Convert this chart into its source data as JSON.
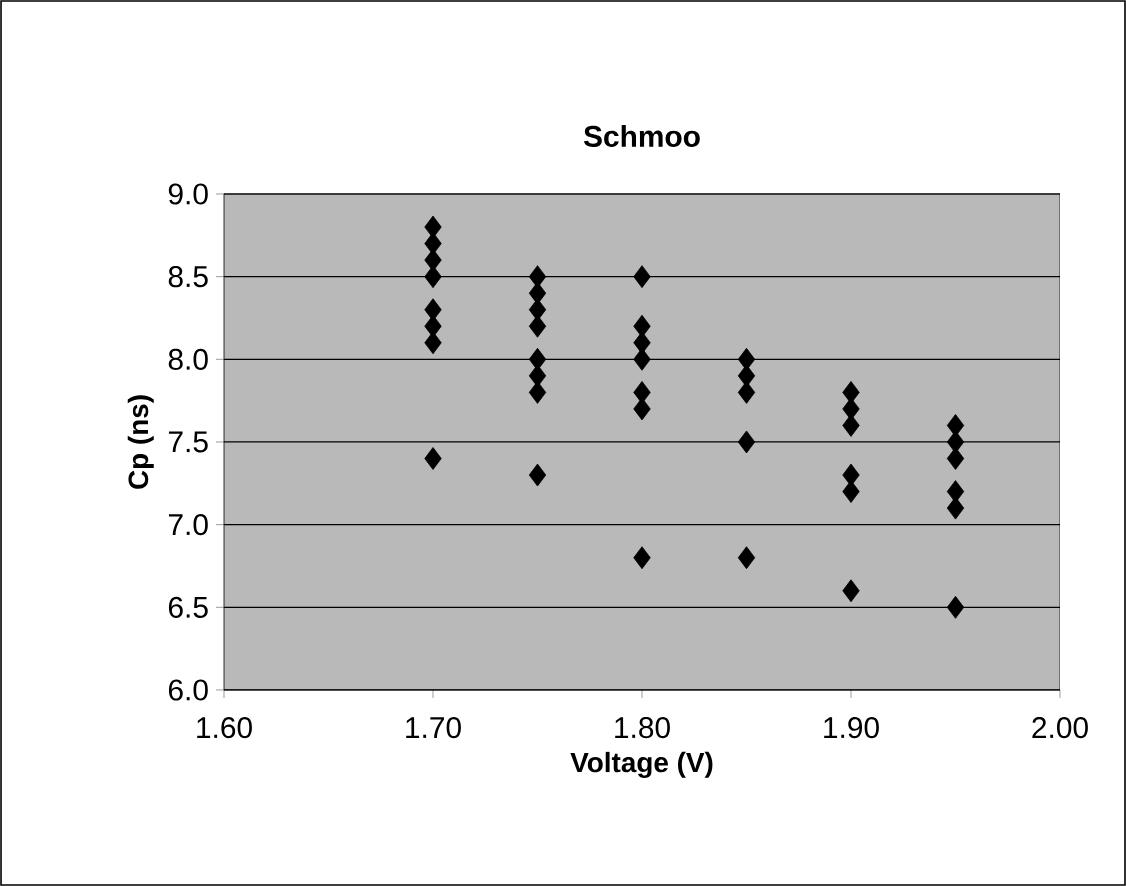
{
  "chart_data": {
    "type": "scatter",
    "title": "Schmoo",
    "xlabel": "Voltage (V)",
    "ylabel": "Cp (ns)",
    "x": [
      1.7,
      1.7,
      1.7,
      1.7,
      1.7,
      1.7,
      1.7,
      1.7,
      1.75,
      1.75,
      1.75,
      1.75,
      1.75,
      1.75,
      1.75,
      1.75,
      1.8,
      1.8,
      1.8,
      1.8,
      1.8,
      1.8,
      1.8,
      1.85,
      1.85,
      1.85,
      1.85,
      1.85,
      1.9,
      1.9,
      1.9,
      1.9,
      1.9,
      1.9,
      1.95,
      1.95,
      1.95,
      1.95,
      1.95,
      1.95
    ],
    "values": [
      8.8,
      8.7,
      8.6,
      8.5,
      8.3,
      8.2,
      8.1,
      7.4,
      8.5,
      8.4,
      8.3,
      8.2,
      8.0,
      7.9,
      7.8,
      7.3,
      8.5,
      8.2,
      8.1,
      8.0,
      7.8,
      7.7,
      6.8,
      8.0,
      7.9,
      7.8,
      7.5,
      6.8,
      7.8,
      7.7,
      7.6,
      7.3,
      7.2,
      6.6,
      7.6,
      7.5,
      7.4,
      7.2,
      7.1,
      6.5
    ],
    "color": "#000000",
    "marker": "diamond",
    "grid": "y",
    "xlim": [
      1.6,
      2.0
    ],
    "xticks": [
      {
        "value": 1.6,
        "label": "1.60"
      },
      {
        "value": 1.7,
        "label": "1.70"
      },
      {
        "value": 1.8,
        "label": "1.80"
      },
      {
        "value": 1.9,
        "label": "1.90"
      },
      {
        "value": 2.0,
        "label": "2.00"
      }
    ],
    "ylim": [
      6.0,
      9.0
    ],
    "yticks": [
      {
        "value": 6.0,
        "label": "6.0"
      },
      {
        "value": 6.5,
        "label": "6.5"
      },
      {
        "value": 7.0,
        "label": "7.0"
      },
      {
        "value": 7.5,
        "label": "7.5"
      },
      {
        "value": 8.0,
        "label": "8.0"
      },
      {
        "value": 8.5,
        "label": "8.5"
      },
      {
        "value": 9.0,
        "label": "9.0"
      }
    ]
  }
}
